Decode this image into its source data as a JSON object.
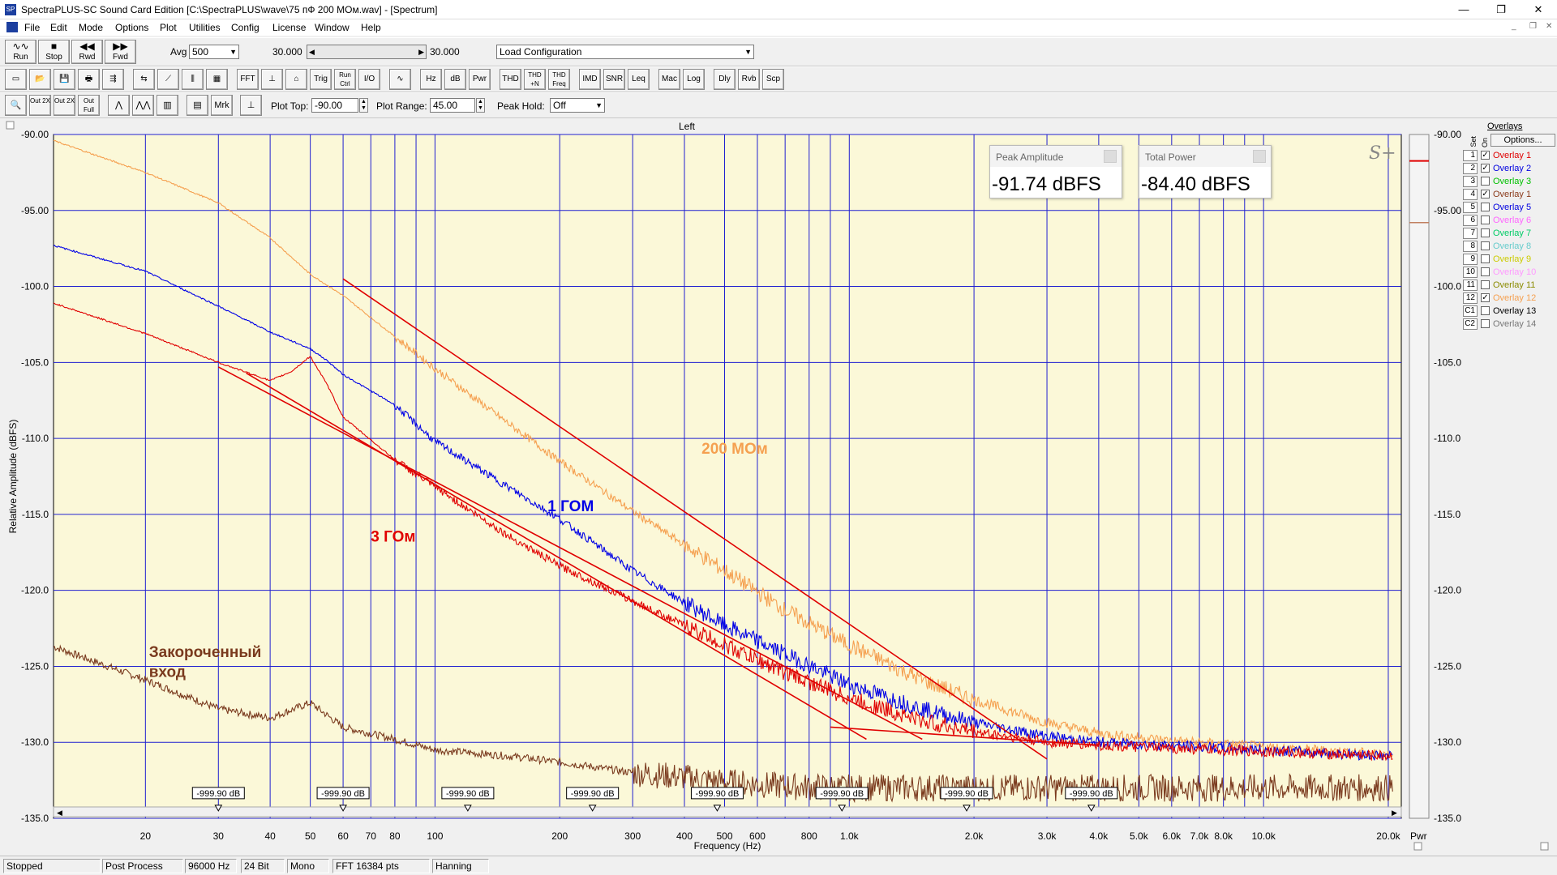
{
  "window": {
    "title": "SpectraPLUS-SC Sound Card Edition [C:\\SpectraPLUS\\wave\\75 пФ 200 МОм.wav] - [Spectrum]",
    "controls": [
      "—",
      "❐",
      "✕"
    ],
    "mdi_controls": [
      "_",
      "❐",
      "✕"
    ]
  },
  "menu": [
    "File",
    "Edit",
    "Mode",
    "Options",
    "Plot",
    "Utilities",
    "Config",
    "License",
    "Window",
    "Help"
  ],
  "toolbar1": {
    "buttons": [
      {
        "glyph": "∿∿",
        "label": "Run"
      },
      {
        "glyph": "■",
        "label": "Stop"
      },
      {
        "glyph": "◀◀",
        "label": "Rwd"
      },
      {
        "glyph": "▶▶",
        "label": "Fwd"
      }
    ],
    "avg_label": "Avg",
    "avg_value": "500",
    "pos_left": "30.000",
    "pos_right": "30.000",
    "config_value": "Load Configuration"
  },
  "toolbar2": [
    "▭",
    "📂",
    "💾",
    "🖶",
    "⇶",
    "⇆",
    "⟋",
    "⫼",
    "▦",
    "FFT",
    "⊥",
    "⌂",
    "Trig",
    "Run Ctrl",
    "I/O",
    "∿",
    "Hz",
    "dB",
    "Pwr",
    "THD",
    "THD +N",
    "THD Freq",
    "IMD",
    "SNR",
    "Leq",
    "Mac",
    "Log",
    "Dly",
    "Rvb",
    "Scp"
  ],
  "toolbar3": {
    "buttons": [
      "🔍",
      "Out 2X",
      "Out 2X",
      "Out Full",
      "⋀",
      "⋀⋀",
      "▥",
      "▤",
      "Mrk",
      "⊥"
    ],
    "plot_top_label": "Plot Top:",
    "plot_top_value": "-90.00",
    "plot_range_label": "Plot Range:",
    "plot_range_value": "45.00",
    "peak_hold_label": "Peak Hold:",
    "peak_hold_value": "Off"
  },
  "meters": [
    {
      "title": "Peak Amplitude",
      "value": "-91.74 dBFS"
    },
    {
      "title": "Total Power",
      "value": "-84.40 dBFS"
    }
  ],
  "overlays": {
    "title": "Overlays",
    "options_label": "Options...",
    "set_label": "Set",
    "on_label": "On",
    "items": [
      {
        "num": "1",
        "checked": true,
        "name": "Overlay 1",
        "color": "#e00000"
      },
      {
        "num": "2",
        "checked": true,
        "name": "Overlay 2",
        "color": "#0000e0"
      },
      {
        "num": "3",
        "checked": false,
        "name": "Overlay 3",
        "color": "#00c000"
      },
      {
        "num": "4",
        "checked": true,
        "name": "Overlay 1",
        "color": "#8b3a1a"
      },
      {
        "num": "5",
        "checked": false,
        "name": "Overlay 5",
        "color": "#0000e0"
      },
      {
        "num": "6",
        "checked": false,
        "name": "Overlay 6",
        "color": "#ff66ff"
      },
      {
        "num": "7",
        "checked": false,
        "name": "Overlay 7",
        "color": "#00cc66"
      },
      {
        "num": "8",
        "checked": false,
        "name": "Overlay 8",
        "color": "#66cccc"
      },
      {
        "num": "9",
        "checked": false,
        "name": "Overlay 9",
        "color": "#cccc00"
      },
      {
        "num": "10",
        "checked": false,
        "name": "Overlay 10",
        "color": "#ff99ff"
      },
      {
        "num": "11",
        "checked": false,
        "name": "Overlay 11",
        "color": "#8b8b00"
      },
      {
        "num": "12",
        "checked": true,
        "name": "Overlay 12",
        "color": "#f5a050"
      },
      {
        "num": "C1",
        "checked": false,
        "name": "Overlay 13",
        "color": "#000000"
      },
      {
        "num": "C2",
        "checked": false,
        "name": "Overlay 14",
        "color": "#777777"
      }
    ]
  },
  "status": [
    "Stopped",
    "Post Process",
    "96000 Hz",
    "24 Bit",
    "Mono",
    "FFT 16384 pts",
    "Hanning"
  ],
  "chart_data": {
    "type": "line",
    "title": "Left",
    "xlabel": "Frequency (Hz)",
    "ylabel": "Relative Amplitude (dBFS)",
    "xscale": "log",
    "xlim": [
      12,
      21500
    ],
    "ylim": [
      -135,
      -90
    ],
    "right_axis_label": "Pwr",
    "background": "#fbf8d8",
    "grid_color": "#2020d0",
    "y_ticks": [
      "-90.00",
      "-95.00",
      "-100.0",
      "-105.0",
      "-110.0",
      "-115.0",
      "-120.0",
      "-125.0",
      "-130.0",
      "-135.0"
    ],
    "x_ticks": [
      {
        "v": 20,
        "l": "20"
      },
      {
        "v": 30,
        "l": "30"
      },
      {
        "v": 40,
        "l": "40"
      },
      {
        "v": 50,
        "l": "50"
      },
      {
        "v": 60,
        "l": "60"
      },
      {
        "v": 70,
        "l": "70"
      },
      {
        "v": 80,
        "l": "80"
      },
      {
        "v": 100,
        "l": "100"
      },
      {
        "v": 200,
        "l": "200"
      },
      {
        "v": 300,
        "l": "300"
      },
      {
        "v": 400,
        "l": "400"
      },
      {
        "v": 500,
        "l": "500"
      },
      {
        "v": 600,
        "l": "600"
      },
      {
        "v": 800,
        "l": "800"
      },
      {
        "v": 1000,
        "l": "1.0k"
      },
      {
        "v": 2000,
        "l": "2.0k"
      },
      {
        "v": 3000,
        "l": "3.0k"
      },
      {
        "v": 4000,
        "l": "4.0k"
      },
      {
        "v": 5000,
        "l": "5.0k"
      },
      {
        "v": 6000,
        "l": "6.0k"
      },
      {
        "v": 7000,
        "l": "7.0k"
      },
      {
        "v": 8000,
        "l": "8.0k"
      },
      {
        "v": 10000,
        "l": "10.0k"
      },
      {
        "v": 20000,
        "l": "20.0k"
      }
    ],
    "grid_x": [
      20,
      30,
      40,
      50,
      60,
      70,
      80,
      90,
      100,
      200,
      300,
      400,
      500,
      600,
      700,
      800,
      900,
      1000,
      2000,
      3000,
      4000,
      5000,
      6000,
      7000,
      8000,
      9000,
      10000,
      20000
    ],
    "markers": {
      "label": "-999.90 dB",
      "freqs": [
        30,
        60,
        120,
        240,
        480,
        960,
        1920,
        3840
      ]
    },
    "series": [
      {
        "label": "200 МОм",
        "color": "#f5a050",
        "x": [
          12,
          20,
          30,
          40,
          50,
          60,
          80,
          100,
          150,
          200,
          300,
          400,
          500,
          700,
          1000,
          1500,
          2000,
          3000,
          4000,
          6000,
          10000,
          20000
        ],
        "y": [
          -90.4,
          -92.5,
          -94.5,
          -96.8,
          -99.2,
          -100.6,
          -103.3,
          -105.4,
          -109.0,
          -111.5,
          -114.8,
          -117.0,
          -118.7,
          -121.3,
          -123.6,
          -125.9,
          -127.2,
          -128.7,
          -129.4,
          -129.9,
          -130.3,
          -130.8
        ]
      },
      {
        "label": "1 ГОМ",
        "color": "#0000e6",
        "x": [
          12,
          20,
          30,
          40,
          50,
          55,
          60,
          80,
          100,
          150,
          200,
          300,
          400,
          500,
          700,
          1000,
          1500,
          2000,
          3000,
          4000,
          6000,
          10000,
          20000
        ],
        "y": [
          -97.3,
          -99.0,
          -101.3,
          -103.0,
          -104.1,
          -104.9,
          -105.8,
          -107.8,
          -110.2,
          -113.2,
          -115.3,
          -118.7,
          -120.8,
          -122.3,
          -124.2,
          -126.2,
          -127.8,
          -128.7,
          -129.6,
          -130.0,
          -130.2,
          -130.5,
          -130.9
        ]
      },
      {
        "label": "3 ГОм",
        "color": "#e00000",
        "x": [
          12,
          20,
          30,
          40,
          45,
          50,
          55,
          60,
          70,
          80,
          100,
          150,
          200,
          300,
          400,
          500,
          700,
          1000,
          1500,
          2000,
          3000,
          4000,
          6000,
          10000,
          20000
        ],
        "y": [
          -101.1,
          -103.1,
          -105.0,
          -106.2,
          -105.6,
          -104.6,
          -106.5,
          -108.6,
          -110.1,
          -111.4,
          -113.2,
          -116.4,
          -118.4,
          -120.7,
          -122.3,
          -123.6,
          -125.4,
          -127.1,
          -128.6,
          -129.3,
          -130.0,
          -130.2,
          -130.4,
          -130.6,
          -130.9
        ]
      },
      {
        "label": "Закороченный вход",
        "color": "#7a3a1e",
        "x": [
          12,
          20,
          30,
          40,
          50,
          60,
          80,
          100,
          150,
          200,
          300,
          400,
          500,
          700,
          1000,
          1500,
          2000,
          3000,
          5000,
          10000,
          20000
        ],
        "y": [
          -123.7,
          -125.9,
          -127.8,
          -128.4,
          -127.4,
          -129.0,
          -129.8,
          -130.5,
          -130.9,
          -131.3,
          -132.0,
          -132.3,
          -132.6,
          -132.9,
          -133.0,
          -133.0,
          -133.0,
          -133.0,
          -133.0,
          -133.0,
          -133.0
        ]
      }
    ],
    "trend_lines": [
      {
        "color": "#e00000",
        "x": [
          60,
          3000
        ],
        "y": [
          -99.5,
          -131.1
        ]
      },
      {
        "color": "#e00000",
        "x": [
          30,
          1500
        ],
        "y": [
          -105.3,
          -129.8
        ]
      },
      {
        "color": "#e00000",
        "x": [
          35,
          1100
        ],
        "y": [
          -105.7,
          -129.8
        ]
      },
      {
        "color": "#e00000",
        "x": [
          900,
          4000
        ],
        "y": [
          -129.0,
          -130.2
        ]
      }
    ],
    "annotations": [
      {
        "text": "200 МОм",
        "color": "#f5a050",
        "fx": 440,
        "fy": -111.0
      },
      {
        "text": "1 ГОМ",
        "color": "#0000e6",
        "fx": 187,
        "fy": -114.8
      },
      {
        "text": "3 ГОм",
        "color": "#e00000",
        "fx": 70,
        "fy": -116.8
      },
      {
        "text": "Закороченный",
        "color": "#7a3a1e",
        "fx": 20.4,
        "fy": -124.4
      },
      {
        "text": "вход",
        "color": "#7a3a1e",
        "fx": 20.4,
        "fy": -125.7
      }
    ]
  }
}
